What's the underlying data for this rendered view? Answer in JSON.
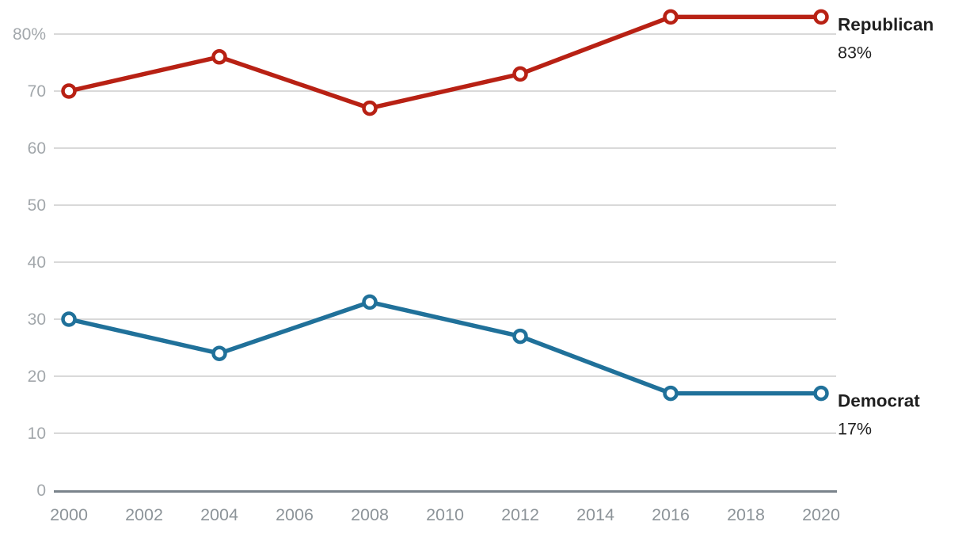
{
  "chart_data": {
    "type": "line",
    "title": "",
    "xlabel": "",
    "ylabel": "",
    "x": [
      2000,
      2004,
      2008,
      2012,
      2016,
      2020
    ],
    "series": [
      {
        "name": "Republican",
        "values": [
          70,
          76,
          67,
          73,
          83,
          83
        ],
        "color": "#b82114",
        "end_label": "Republican",
        "end_value_label": "83%"
      },
      {
        "name": "Democrat",
        "values": [
          30,
          24,
          33,
          27,
          17,
          17
        ],
        "color": "#20719a",
        "end_label": "Democrat",
        "end_value_label": "17%"
      }
    ],
    "x_ticks": [
      {
        "value": 2000,
        "label": "2000"
      },
      {
        "value": 2002,
        "label": "2002"
      },
      {
        "value": 2004,
        "label": "2004"
      },
      {
        "value": 2006,
        "label": "2006"
      },
      {
        "value": 2008,
        "label": "2008"
      },
      {
        "value": 2010,
        "label": "2010"
      },
      {
        "value": 2012,
        "label": "2012"
      },
      {
        "value": 2014,
        "label": "2014"
      },
      {
        "value": 2016,
        "label": "2016"
      },
      {
        "value": 2018,
        "label": "2018"
      },
      {
        "value": 2020,
        "label": "2020"
      }
    ],
    "y_ticks": [
      {
        "value": 0,
        "label": "0"
      },
      {
        "value": 10,
        "label": "10"
      },
      {
        "value": 20,
        "label": "20"
      },
      {
        "value": 30,
        "label": "30"
      },
      {
        "value": 40,
        "label": "40"
      },
      {
        "value": 50,
        "label": "50"
      },
      {
        "value": 60,
        "label": "60"
      },
      {
        "value": 70,
        "label": "70"
      },
      {
        "value": 80,
        "label": "80%"
      }
    ],
    "xlim": [
      2000,
      2020
    ],
    "ylim": [
      0,
      86
    ],
    "grid": true,
    "legend_position": "right-end-labels"
  },
  "style_colors": {
    "gridline": "#d9d9d9",
    "axis_line": "#7a838b",
    "y_tick_text": "#a2a7ab",
    "x_tick_text": "#8d9499",
    "end_label_text": "#1f1f1f",
    "end_value_text": "#222222",
    "marker_fill": "#ffffff"
  }
}
